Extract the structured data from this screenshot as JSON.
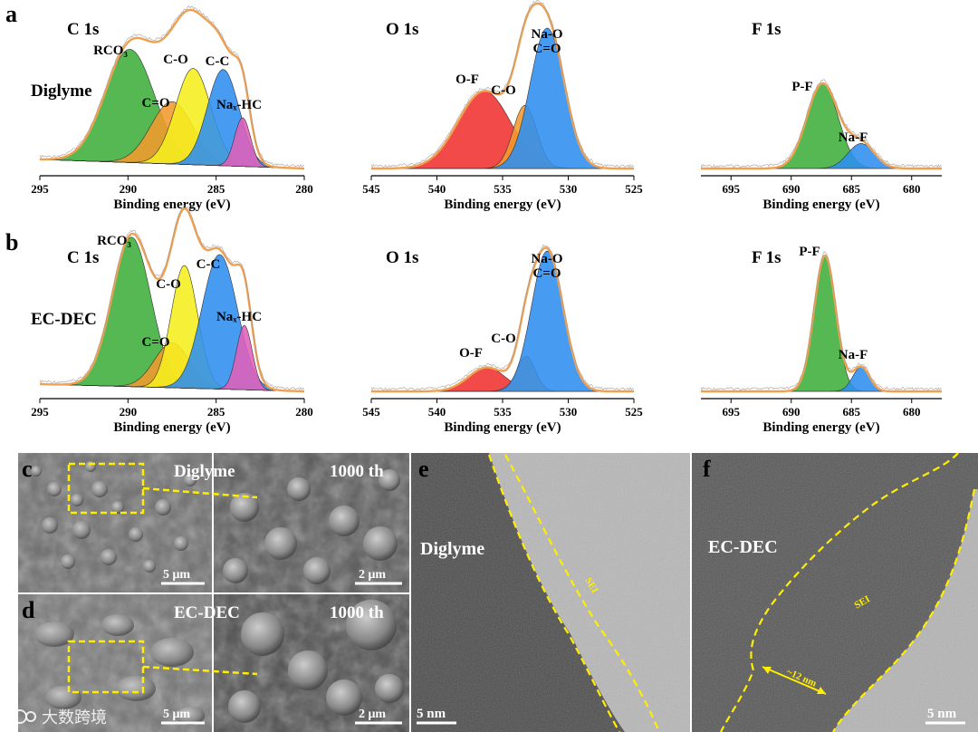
{
  "figure": {
    "watermark": "大数跨境",
    "panel_a": {
      "letter": "a",
      "sample": "Diglyme"
    },
    "panel_b": {
      "letter": "b",
      "sample": "EC-DEC"
    },
    "panel_c": {
      "letter": "c",
      "sample": "Diglyme",
      "cycles": "1000 th",
      "scale_left": "5 μm",
      "scale_right": "2 μm"
    },
    "panel_d": {
      "letter": "d",
      "sample": "EC-DEC",
      "cycles": "1000 th",
      "scale_left": "5 μm",
      "scale_right": "2 μm"
    },
    "panel_e": {
      "letter": "e",
      "sample": "Diglyme",
      "sei_label": "SEI",
      "scale": "5 nm"
    },
    "panel_f": {
      "letter": "f",
      "sample": "EC-DEC",
      "sei_label": "SEI",
      "thickness": "~12 nm",
      "scale": "5 nm"
    }
  },
  "colors": {
    "envelope": "#f0a050",
    "green": "#3fae3a",
    "orange": "#f29a2e",
    "yellow": "#f5ee1e",
    "blue": "#2e8ef0",
    "pink": "#e060b8",
    "red": "#f03030",
    "annotation": "#ffee00"
  },
  "chart_data": [
    {
      "id": "a-C1s",
      "type": "area",
      "title": "C 1s",
      "xlabel": "Binding energy (eV)",
      "xlim": [
        295,
        280
      ],
      "xticks": [
        295,
        290,
        285,
        280
      ],
      "series": [
        {
          "name": "RCO3",
          "label": "RCO₃",
          "center": 289.9,
          "height": 1.0,
          "width": 1.4,
          "color": "green"
        },
        {
          "name": "C=O",
          "label": "C=O",
          "center": 287.5,
          "height": 0.55,
          "width": 1.2,
          "color": "orange"
        },
        {
          "name": "C-O",
          "label": "C-O",
          "center": 286.3,
          "height": 0.85,
          "width": 1.0,
          "color": "yellow"
        },
        {
          "name": "C-C",
          "label": "C-C",
          "center": 284.6,
          "height": 0.85,
          "width": 0.9,
          "color": "blue"
        },
        {
          "name": "Nax-HC",
          "label": "Naₓ-HC",
          "center": 283.5,
          "height": 0.43,
          "width": 0.45,
          "color": "pink"
        }
      ]
    },
    {
      "id": "a-O1s",
      "type": "area",
      "title": "O 1s",
      "xlabel": "Binding energy (eV)",
      "xlim": [
        545,
        525
      ],
      "xticks": [
        545,
        540,
        535,
        530,
        525
      ],
      "series": [
        {
          "name": "O-F",
          "label": "O-F",
          "center": 536.4,
          "height": 0.55,
          "width": 2.0,
          "color": "red"
        },
        {
          "name": "C-O",
          "label": "C-O",
          "center": 533.3,
          "height": 0.45,
          "width": 0.9,
          "color": "orange"
        },
        {
          "name": "Na-O C=O",
          "label": "Na-O\nC=O",
          "center": 531.6,
          "height": 1.0,
          "width": 1.3,
          "color": "blue"
        }
      ]
    },
    {
      "id": "a-F1s",
      "type": "area",
      "title": "F 1s",
      "xlabel": "Binding energy (eV)",
      "xlim": [
        697.5,
        677.5
      ],
      "xticks": [
        695,
        690,
        685,
        680
      ],
      "series": [
        {
          "name": "P-F",
          "label": "P-F",
          "center": 687.4,
          "height": 0.78,
          "width": 1.3,
          "color": "green"
        },
        {
          "name": "Na-F",
          "label": "Na-F",
          "center": 684.2,
          "height": 0.23,
          "width": 1.1,
          "color": "blue"
        }
      ]
    },
    {
      "id": "b-C1s",
      "type": "area",
      "title": "C 1s",
      "xlabel": "Binding energy (eV)",
      "xlim": [
        295,
        280
      ],
      "xticks": [
        295,
        290,
        285,
        280
      ],
      "series": [
        {
          "name": "RCO3",
          "label": "RCO₃",
          "center": 289.8,
          "height": 1.0,
          "width": 1.1,
          "color": "green"
        },
        {
          "name": "C=O",
          "label": "C=O",
          "center": 287.5,
          "height": 0.3,
          "width": 1.0,
          "color": "orange"
        },
        {
          "name": "C-O",
          "label": "C-O",
          "center": 286.8,
          "height": 0.82,
          "width": 0.75,
          "color": "yellow"
        },
        {
          "name": "C-C",
          "label": "C-C",
          "center": 284.8,
          "height": 0.9,
          "width": 1.0,
          "color": "blue"
        },
        {
          "name": "Nax-HC",
          "label": "Naₓ-HC",
          "center": 283.4,
          "height": 0.43,
          "width": 0.45,
          "color": "pink"
        }
      ]
    },
    {
      "id": "b-O1s",
      "type": "area",
      "title": "O 1s",
      "xlabel": "Binding energy (eV)",
      "xlim": [
        545,
        525
      ],
      "xticks": [
        545,
        540,
        535,
        530,
        525
      ],
      "series": [
        {
          "name": "O-F",
          "label": "O-F",
          "center": 536.2,
          "height": 0.17,
          "width": 1.4,
          "color": "red"
        },
        {
          "name": "C-O",
          "label": "C-O",
          "center": 533.2,
          "height": 0.25,
          "width": 0.7,
          "color": "orange"
        },
        {
          "name": "Na-O C=O",
          "label": "Na-O\nC=O",
          "center": 531.6,
          "height": 1.0,
          "width": 1.2,
          "color": "blue"
        }
      ]
    },
    {
      "id": "b-F1s",
      "type": "area",
      "title": "F 1s",
      "xlabel": "Binding energy (eV)",
      "xlim": [
        697.5,
        677.5
      ],
      "xticks": [
        695,
        690,
        685,
        680
      ],
      "series": [
        {
          "name": "P-F",
          "label": "P-F",
          "center": 687.2,
          "height": 1.0,
          "width": 0.9,
          "color": "green"
        },
        {
          "name": "Na-F",
          "label": "Na-F",
          "center": 684.2,
          "height": 0.18,
          "width": 0.7,
          "color": "blue"
        }
      ]
    }
  ]
}
